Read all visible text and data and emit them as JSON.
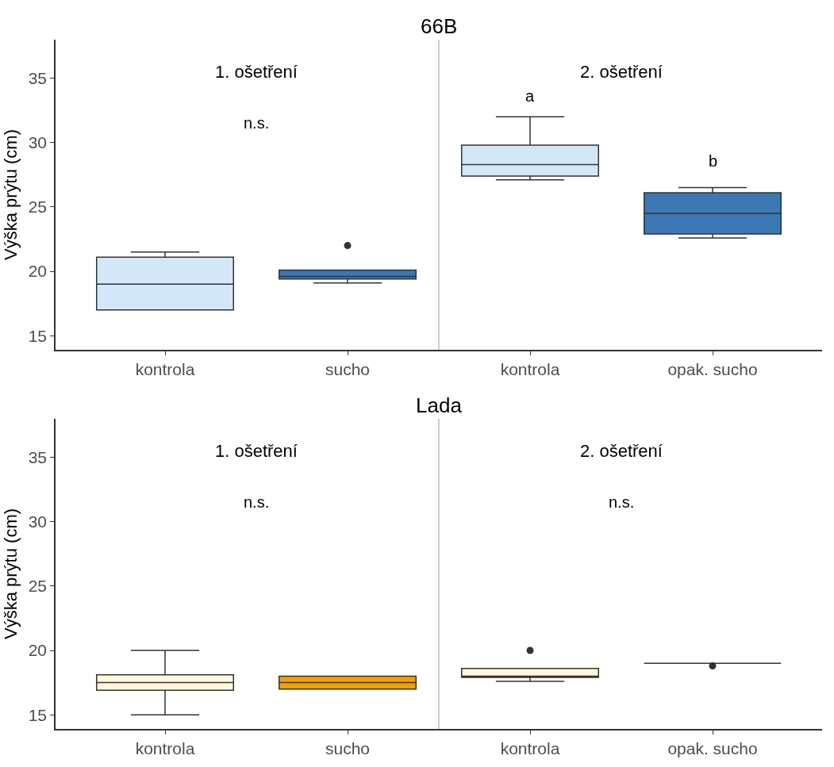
{
  "chart_data": [
    {
      "type": "box",
      "title": "66B",
      "ylabel": "Výška prýtu (cm)",
      "categories": [
        "kontrola",
        "sucho",
        "kontrola",
        "opak. sucho"
      ],
      "colors": [
        "#d3e7f8",
        "#3b78b4",
        "#d3e7f8",
        "#3b78b4"
      ],
      "boxes": [
        {
          "low": 17.0,
          "q1": 17.0,
          "median": 19.0,
          "q3": 21.1,
          "high": 21.5
        },
        {
          "low": 19.1,
          "q1": 19.4,
          "median": 19.6,
          "q3": 20.1,
          "high": 20.1,
          "outliers": [
            22.0
          ]
        },
        {
          "low": 27.1,
          "q1": 27.4,
          "median": 28.3,
          "q3": 29.8,
          "high": 32.0
        },
        {
          "low": 22.6,
          "q1": 22.9,
          "median": 24.5,
          "q3": 26.1,
          "high": 26.5
        }
      ],
      "ylim": [
        13.9,
        38
      ],
      "yticks": [
        15,
        20,
        25,
        30,
        35
      ],
      "annotations": [
        "1. ošetření",
        "2. ošetření",
        "n.s.",
        "a",
        "b"
      ]
    },
    {
      "type": "box",
      "title": "Lada",
      "ylabel": "Výška prýtu (cm)",
      "categories": [
        "kontrola",
        "sucho",
        "kontrola",
        "opak. sucho"
      ],
      "colors": [
        "#fff8dc",
        "#f5a000",
        "#fff8dc",
        "#333333"
      ],
      "boxes": [
        {
          "low": 15.0,
          "q1": 16.9,
          "median": 17.5,
          "q3": 18.1,
          "high": 20.0
        },
        {
          "low": 17.0,
          "q1": 17.0,
          "median": 17.5,
          "q3": 18.0,
          "high": 18.0
        },
        {
          "low": 17.6,
          "q1": 17.9,
          "median": 18.0,
          "q3": 18.6,
          "high": 18.6,
          "outliers": [
            20.0
          ]
        },
        {
          "low": 19.0,
          "q1": 19.0,
          "median": 19.0,
          "q3": 19.0,
          "high": 19.0,
          "outliers": [
            18.8
          ]
        }
      ],
      "ylim": [
        13.9,
        38
      ],
      "yticks": [
        15,
        20,
        25,
        30,
        35
      ],
      "annotations": [
        "1. ošetření",
        "2. ošetření",
        "n.s.",
        "n.s."
      ]
    }
  ]
}
